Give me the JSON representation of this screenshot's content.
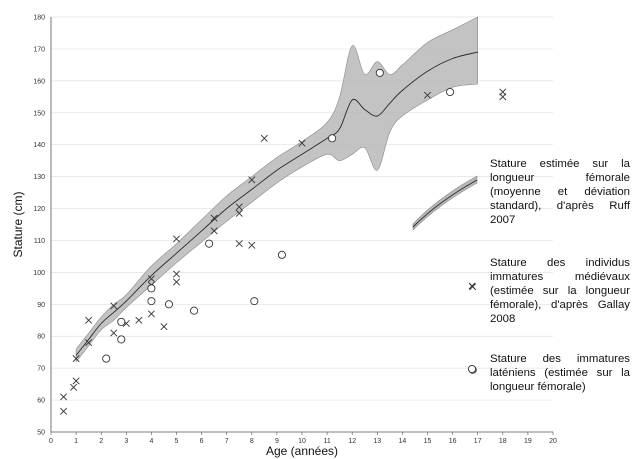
{
  "chart_data": {
    "type": "scatter",
    "title": "",
    "xlabel": "Age (années)",
    "ylabel": "Stature (cm)",
    "xlim": [
      0,
      20
    ],
    "ylim": [
      50,
      180
    ],
    "x_ticks": [
      0,
      1,
      2,
      3,
      4,
      5,
      6,
      7,
      8,
      9,
      10,
      11,
      12,
      13,
      14,
      15,
      16,
      17,
      18,
      19,
      20
    ],
    "y_ticks": [
      50,
      60,
      70,
      80,
      90,
      100,
      110,
      120,
      130,
      140,
      150,
      160,
      170,
      180
    ],
    "grid": "horizontal",
    "legend": [
      {
        "symbol": "band",
        "text": "Stature estimée sur la longueur fémorale (moyenne et déviation standard), d'après Ruff 2007"
      },
      {
        "symbol": "x",
        "text": "Stature des individus immatures médiévaux (estimée sur la longueur fémorale), d'après Gallay 2008"
      },
      {
        "symbol": "o",
        "text": "Stature des immatures laténiens (estimée sur la longueur fémorale)"
      }
    ],
    "series": [
      {
        "kind": "band",
        "x": [
          1,
          1.5,
          2,
          2.5,
          3,
          4,
          5,
          6,
          7,
          8,
          9,
          10,
          11,
          11.5,
          12,
          12.5,
          13,
          13.5,
          14,
          15,
          16,
          17
        ],
        "mean": [
          74,
          79,
          84,
          87.5,
          91,
          99,
          106,
          113,
          120,
          126,
          132,
          137,
          142,
          145,
          154,
          151,
          149,
          153,
          157,
          163,
          167,
          169
        ],
        "upper": [
          76,
          81,
          86,
          90,
          93,
          102,
          109,
          116.5,
          124,
          130,
          136,
          141,
          147,
          155,
          171,
          162,
          166,
          162,
          165,
          172,
          176,
          180
        ],
        "lower": [
          72,
          77,
          82,
          85,
          89,
          96,
          103,
          109.5,
          116,
          122,
          128,
          133,
          137,
          135,
          137,
          139,
          132,
          144,
          149,
          154,
          158,
          159
        ]
      },
      {
        "kind": "x",
        "points": [
          [
            0.5,
            61
          ],
          [
            0.5,
            56.5
          ],
          [
            0.9,
            64
          ],
          [
            1,
            66
          ],
          [
            1,
            73
          ],
          [
            1.5,
            78
          ],
          [
            1.5,
            85
          ],
          [
            2.5,
            89.5
          ],
          [
            2.5,
            81
          ],
          [
            3,
            84
          ],
          [
            3.5,
            85
          ],
          [
            4,
            98
          ],
          [
            4,
            96
          ],
          [
            4,
            87
          ],
          [
            4.5,
            83
          ],
          [
            5,
            110.5
          ],
          [
            5,
            99.5
          ],
          [
            5,
            97
          ],
          [
            6.5,
            117
          ],
          [
            6.5,
            113
          ],
          [
            7.5,
            120.5
          ],
          [
            7.5,
            118.5
          ],
          [
            7.5,
            109
          ],
          [
            8,
            129
          ],
          [
            8,
            108.5
          ],
          [
            8.5,
            142
          ],
          [
            10,
            140.5
          ],
          [
            15,
            155.5
          ],
          [
            16.8,
            95.5
          ],
          [
            18,
            156.5
          ],
          [
            18,
            155
          ]
        ]
      },
      {
        "kind": "o",
        "points": [
          [
            2.2,
            73
          ],
          [
            2.8,
            84.5
          ],
          [
            2.8,
            79
          ],
          [
            4,
            91
          ],
          [
            4,
            95
          ],
          [
            4.7,
            90
          ],
          [
            5.7,
            88
          ],
          [
            6.3,
            109
          ],
          [
            8.1,
            91
          ],
          [
            9.2,
            105.5
          ],
          [
            11.2,
            142
          ],
          [
            13.1,
            162.5
          ],
          [
            15.9,
            156.5
          ],
          [
            16.8,
            69.5
          ]
        ]
      }
    ]
  }
}
